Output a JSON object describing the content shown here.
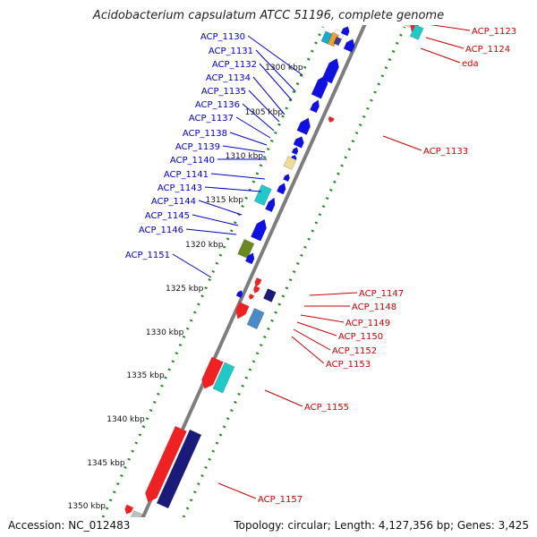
{
  "title": "Acidobacterium capsulatum ATCC 51196, complete genome",
  "footer": {
    "accession": "Accession: NC_012483",
    "summary": "Topology: circular; Length: 4,127,356 bp; Genes: 3,425"
  },
  "colors": {
    "backbone": "#7a7a7a",
    "dots": "#1e8c1e",
    "forward_label": "#0000cc",
    "reverse_label": "#cc0000"
  },
  "scale_ticks": [
    "1300 kbp",
    "1305 kbp",
    "1310 kbp",
    "1315 kbp",
    "1320 kbp",
    "1325 kbp",
    "1330 kbp",
    "1335 kbp",
    "1340 kbp",
    "1345 kbp",
    "1350 kbp"
  ],
  "forward_labels": [
    "ACP_1130",
    "ACP_1131",
    "ACP_1132",
    "ACP_1134",
    "ACP_1135",
    "ACP_1136",
    "ACP_1137",
    "ACP_1138",
    "ACP_1139",
    "ACP_1140",
    "ACP_1141",
    "ACP_1143",
    "ACP_1144",
    "ACP_1145",
    "ACP_1146",
    "ACP_1151"
  ],
  "reverse_labels": [
    "ACP_1123",
    "ACP_1124",
    "eda",
    "ACP_1133",
    "ACP_1147",
    "ACP_1148",
    "ACP_1149",
    "ACP_1150",
    "ACP_1152",
    "ACP_1153",
    "ACP_1155",
    "ACP_1157"
  ]
}
